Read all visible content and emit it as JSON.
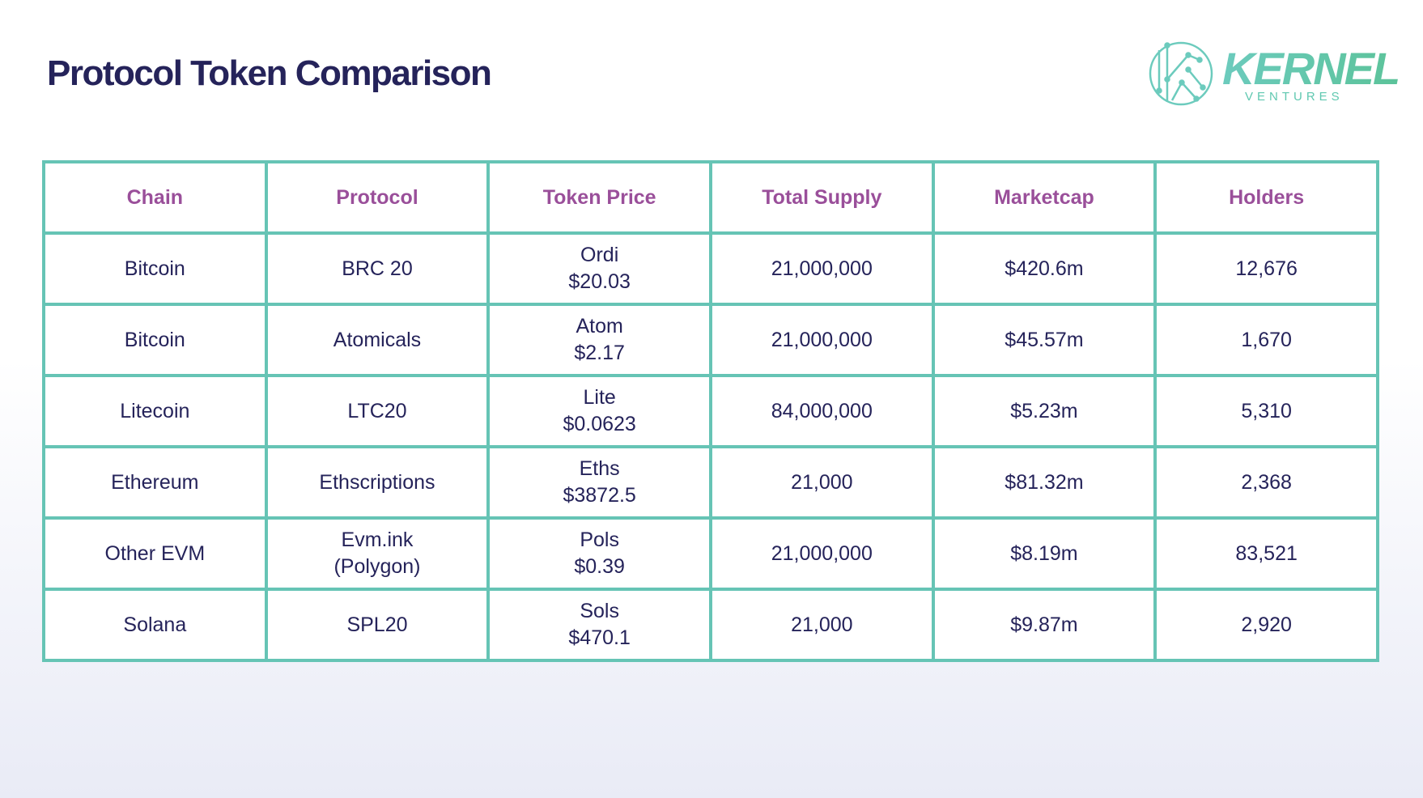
{
  "title": "Protocol Token Comparison",
  "logo": {
    "name": "KERNEL",
    "subtitle": "VENTURES"
  },
  "colors": {
    "title": "#25235a",
    "header": "#9a4f9a",
    "border": "#66c4b5",
    "logo": "#5fc8b0"
  },
  "table": {
    "headers": [
      "Chain",
      "Protocol",
      "Token Price",
      "Total Supply",
      "Marketcap",
      "Holders"
    ],
    "rows": [
      {
        "chain": "Bitcoin",
        "protocol": [
          "BRC 20"
        ],
        "token": "Ordi",
        "price": "$20.03",
        "supply": "21,000,000",
        "marketcap": "$420.6m",
        "holders": "12,676"
      },
      {
        "chain": "Bitcoin",
        "protocol": [
          "Atomicals"
        ],
        "token": "Atom",
        "price": "$2.17",
        "supply": "21,000,000",
        "marketcap": "$45.57m",
        "holders": "1,670"
      },
      {
        "chain": "Litecoin",
        "protocol": [
          "LTC20"
        ],
        "token": "Lite",
        "price": "$0.0623",
        "supply": "84,000,000",
        "marketcap": "$5.23m",
        "holders": "5,310"
      },
      {
        "chain": "Ethereum",
        "protocol": [
          "Ethscriptions"
        ],
        "token": "Eths",
        "price": "$3872.5",
        "supply": "21,000",
        "marketcap": "$81.32m",
        "holders": "2,368"
      },
      {
        "chain": "Other EVM",
        "protocol": [
          "Evm.ink",
          "(Polygon)"
        ],
        "token": "Pols",
        "price": "$0.39",
        "supply": "21,000,000",
        "marketcap": "$8.19m",
        "holders": "83,521"
      },
      {
        "chain": "Solana",
        "protocol": [
          "SPL20"
        ],
        "token": "Sols",
        "price": "$470.1",
        "supply": "21,000",
        "marketcap": "$9.87m",
        "holders": "2,920"
      }
    ]
  }
}
